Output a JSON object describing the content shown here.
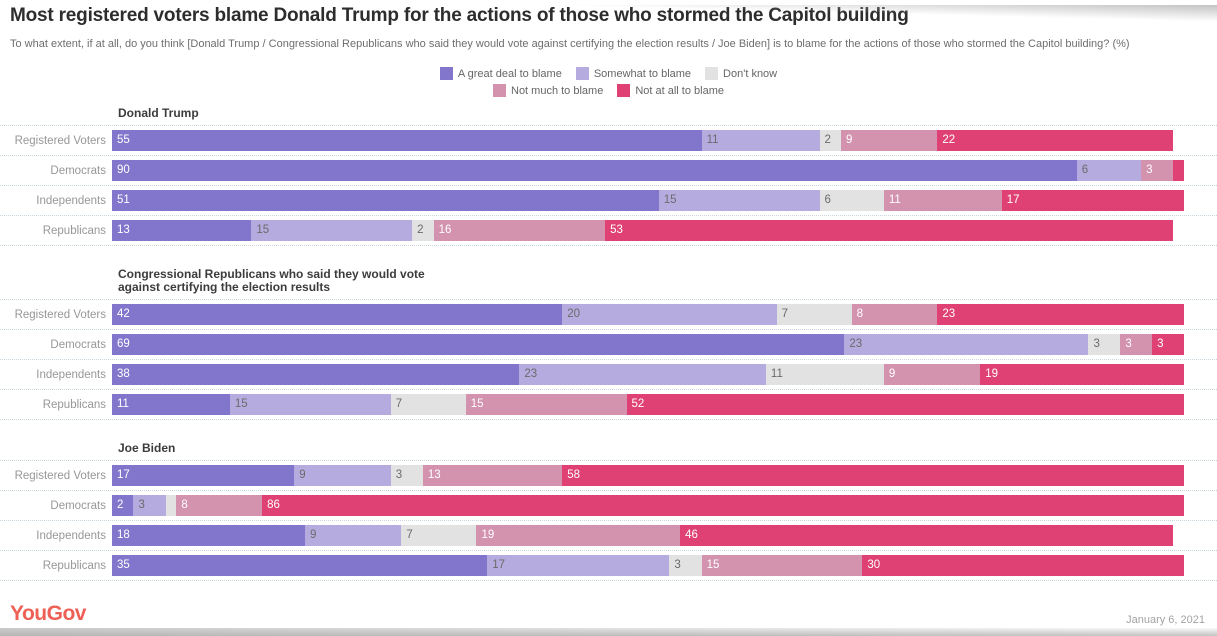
{
  "page": {
    "title": "Most registered voters blame Donald Trump for the actions of those who stormed the Capitol building",
    "subtitle": "To what extent, if at all, do you think [Donald Trump / Congressional Republicans who said they would vote against certifying the election results / Joe Biden] is to blame for the actions of those who stormed the Capitol building? (%)",
    "brand": "YouGov",
    "date": "January 6, 2021"
  },
  "chart_data": {
    "type": "bar",
    "subtype": "horizontal-stacked",
    "title": "Most registered voters blame Donald Trump for the actions of those who stormed the Capitol building",
    "unit": "%",
    "legend_position": "top-center",
    "series_names": [
      "A great deal to blame",
      "Somewhat to blame",
      "Don't know",
      "Not much to blame",
      "Not at all to blame"
    ],
    "series_colors": [
      "#8176cb",
      "#b5abdf",
      "#e2e2e2",
      "#d392ae",
      "#df4174"
    ],
    "label_text_styles": [
      "light",
      "dark",
      "dark",
      "light",
      "light"
    ],
    "legend_rows": [
      [
        0,
        1,
        2
      ],
      [
        3,
        4
      ]
    ],
    "min_label_value": 2,
    "xlim": [
      0,
      100
    ],
    "sections": [
      {
        "name": "Donald Trump",
        "rows": [
          {
            "label": "Registered Voters",
            "values": [
              55,
              11,
              2,
              9,
              22
            ]
          },
          {
            "label": "Democrats",
            "values": [
              90,
              6,
              0,
              3,
              1
            ]
          },
          {
            "label": "Independents",
            "values": [
              51,
              15,
              6,
              11,
              17
            ]
          },
          {
            "label": "Republicans",
            "values": [
              13,
              15,
              2,
              16,
              53
            ]
          }
        ]
      },
      {
        "name": "Congressional Republicans who said they would vote against certifying the election results",
        "rows": [
          {
            "label": "Registered Voters",
            "values": [
              42,
              20,
              7,
              8,
              23
            ]
          },
          {
            "label": "Democrats",
            "values": [
              69,
              23,
              3,
              3,
              3
            ]
          },
          {
            "label": "Independents",
            "values": [
              38,
              23,
              11,
              9,
              19
            ]
          },
          {
            "label": "Republicans",
            "values": [
              11,
              15,
              7,
              15,
              52
            ]
          }
        ]
      },
      {
        "name": "Joe Biden",
        "rows": [
          {
            "label": "Registered Voters",
            "values": [
              17,
              9,
              3,
              13,
              58
            ]
          },
          {
            "label": "Democrats",
            "values": [
              2,
              3,
              1,
              8,
              86
            ]
          },
          {
            "label": "Independents",
            "values": [
              18,
              9,
              7,
              19,
              46
            ]
          },
          {
            "label": "Republicans",
            "values": [
              35,
              17,
              3,
              15,
              30
            ]
          }
        ]
      }
    ]
  }
}
